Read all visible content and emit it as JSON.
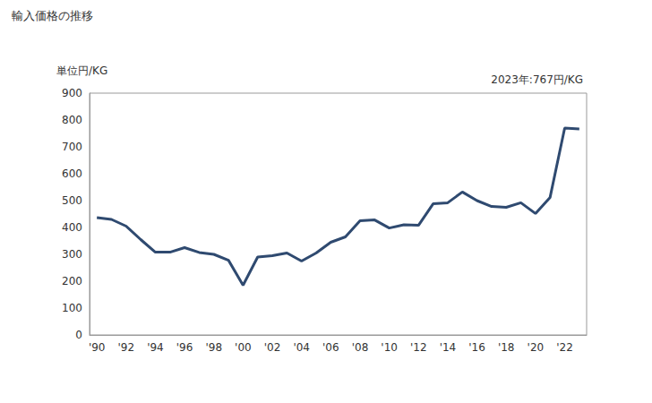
{
  "chart_data": {
    "type": "line",
    "title": "輸入価格の推移",
    "y_label": "単位円/KG",
    "annotation": "2023年:767円/KG",
    "categories": [
      "'90",
      null,
      "'92",
      null,
      "'94",
      null,
      "'96",
      null,
      "'98",
      null,
      "'00",
      null,
      "'02",
      null,
      "'04",
      null,
      "'06",
      null,
      "'08",
      null,
      "'10",
      null,
      "'12",
      null,
      "'14",
      null,
      "'16",
      null,
      "'18",
      null,
      "'20",
      null,
      "'22",
      null
    ],
    "values": [
      437,
      430,
      405,
      355,
      308,
      308,
      325,
      307,
      300,
      278,
      185,
      290,
      295,
      305,
      275,
      305,
      345,
      365,
      425,
      428,
      398,
      410,
      408,
      488,
      492,
      532,
      500,
      478,
      475,
      492,
      452,
      512,
      770,
      767
    ],
    "color": "#2f4a70",
    "ylim": [
      0,
      900
    ],
    "yticks": [
      0,
      100,
      200,
      300,
      400,
      500,
      600,
      700,
      800,
      900
    ],
    "grid": false
  }
}
